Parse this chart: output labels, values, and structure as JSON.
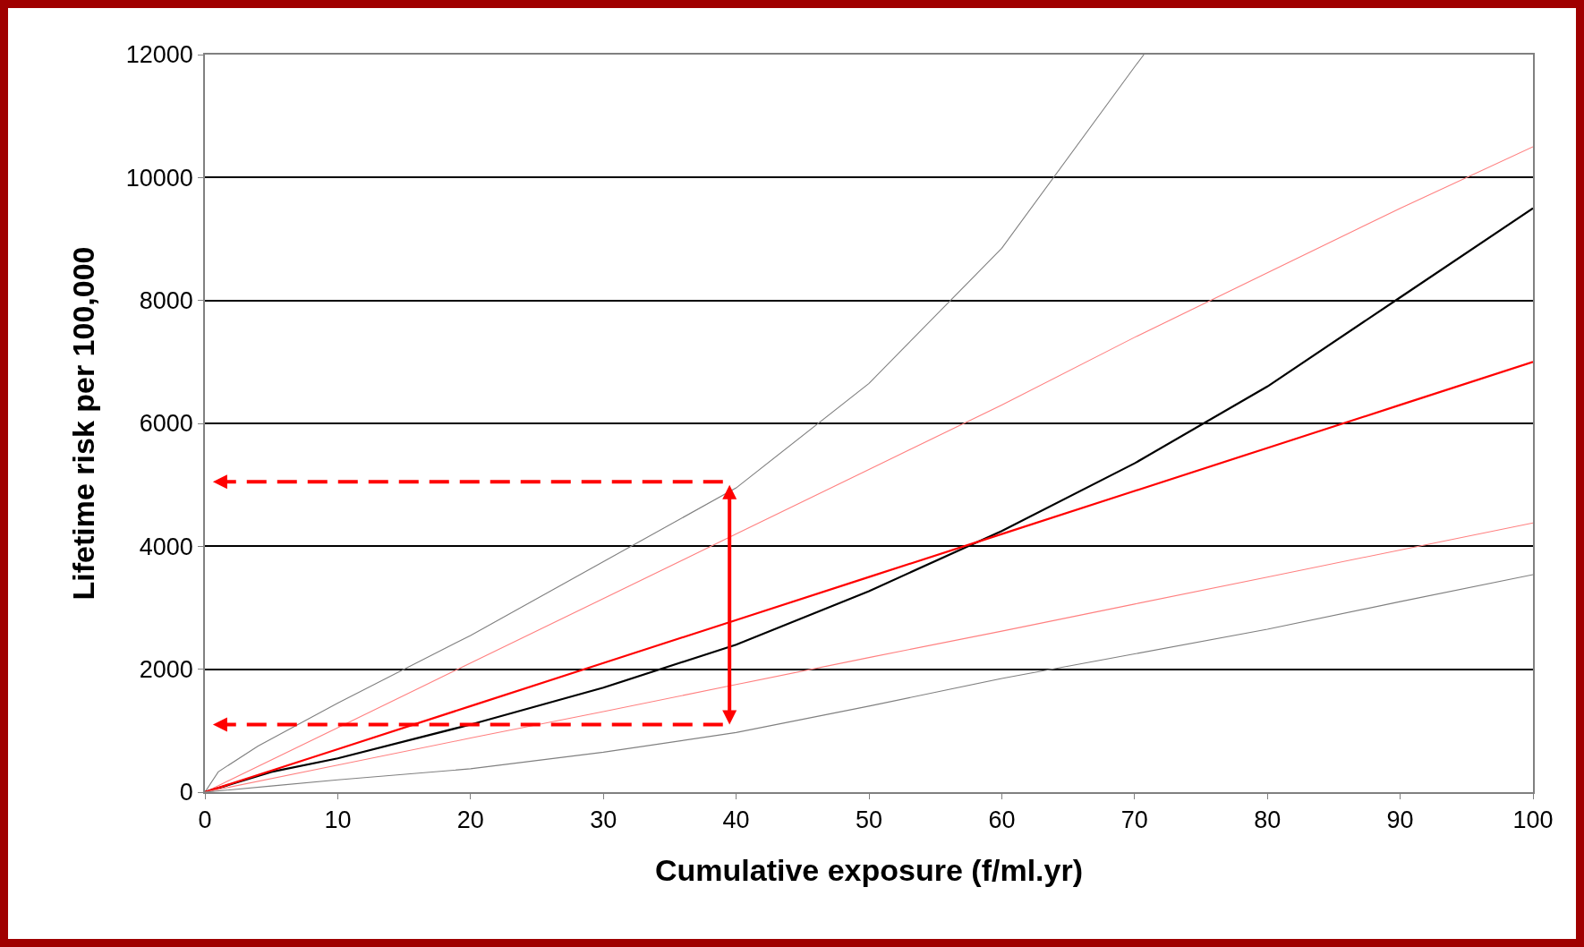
{
  "chart_data": {
    "type": "line",
    "xlabel": "Cumulative exposure (f/ml.yr)",
    "ylabel": "Lifetime risk per 100,000",
    "xlim": [
      0,
      100
    ],
    "xticks": [
      0,
      10,
      20,
      30,
      40,
      50,
      60,
      70,
      80,
      90,
      100
    ],
    "ylim": [
      0,
      12000
    ],
    "yticks": [
      0,
      2000,
      4000,
      6000,
      8000,
      10000,
      12000
    ],
    "grid": "y",
    "marker": "none",
    "line_style": "solid",
    "series": [
      {
        "color": "#808080",
        "x": [
          0,
          1,
          4,
          10,
          20,
          30,
          40,
          50,
          60,
          70,
          70.7
        ],
        "values": [
          0,
          330,
          750,
          1450,
          2550,
          3750,
          4950,
          6650,
          8850,
          11800,
          12000
        ]
      },
      {
        "color": "#ff8080",
        "x": [
          0,
          10,
          20,
          30,
          40,
          50,
          60,
          70,
          80,
          90,
          100
        ],
        "values": [
          0,
          1050,
          2100,
          3150,
          4200,
          5250,
          6300,
          7400,
          8450,
          9500,
          10500
        ]
      },
      {
        "color": "#000000",
        "x": [
          0,
          5,
          10,
          20,
          30,
          40,
          50,
          60,
          70,
          80,
          90,
          100
        ],
        "values": [
          0,
          330,
          550,
          1100,
          1700,
          2400,
          3270,
          4250,
          5350,
          6600,
          8050,
          9500
        ]
      },
      {
        "color": "#ff0000",
        "x": [
          0,
          10,
          20,
          30,
          40,
          50,
          60,
          70,
          80,
          90,
          100
        ],
        "values": [
          0,
          700,
          1400,
          2100,
          2800,
          3500,
          4200,
          4900,
          5600,
          6300,
          7000
        ]
      },
      {
        "color": "#ff8080",
        "x": [
          0,
          10,
          20,
          30,
          40,
          50,
          60,
          70,
          80,
          90,
          100
        ],
        "values": [
          0,
          440,
          880,
          1310,
          1750,
          2190,
          2620,
          3060,
          3500,
          3940,
          4380
        ]
      },
      {
        "color": "#808080",
        "x": [
          0,
          5,
          10,
          20,
          30,
          40,
          50,
          60,
          70,
          80,
          90,
          100
        ],
        "values": [
          0,
          100,
          200,
          380,
          650,
          970,
          1400,
          1850,
          2250,
          2650,
          3100,
          3540
        ]
      }
    ]
  }
}
